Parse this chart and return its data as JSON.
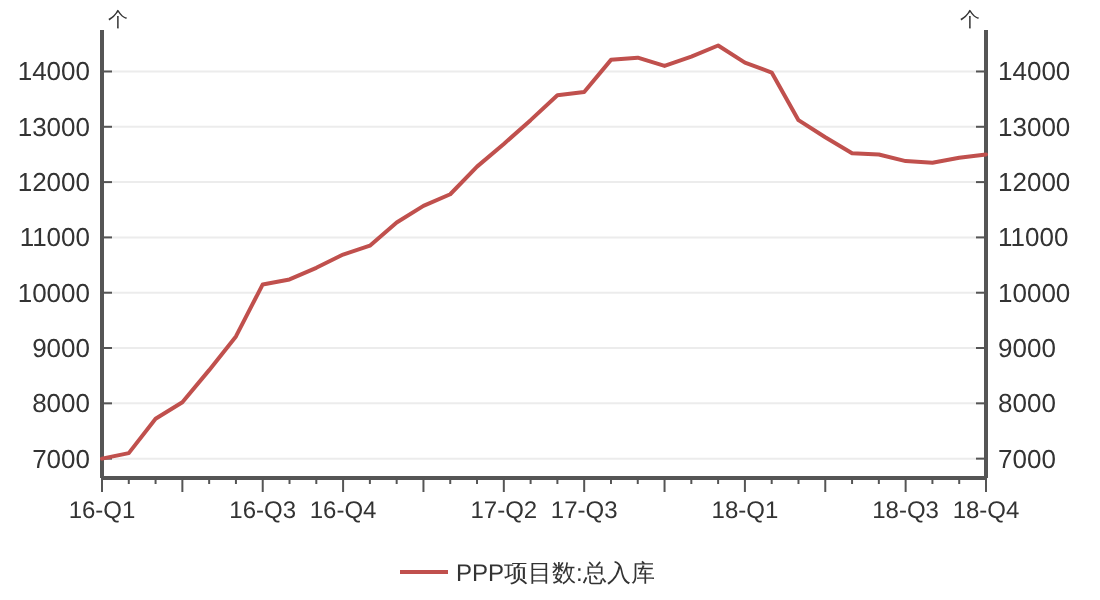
{
  "chart_data": {
    "type": "line",
    "ylabel": "个",
    "y2label": "个",
    "categories": [
      "16-Q1",
      null,
      null,
      null,
      null,
      null,
      "16-Q3",
      null,
      null,
      "16-Q4",
      null,
      null,
      null,
      null,
      null,
      "17-Q2",
      null,
      null,
      "17-Q3",
      null,
      null,
      null,
      null,
      null,
      "18-Q1",
      null,
      null,
      null,
      null,
      null,
      "18-Q3",
      null,
      null,
      "18-Q4"
    ],
    "series": [
      {
        "name": "PPP项目数:总入库",
        "color": "#c0504d",
        "values": [
          7000,
          7100,
          7720,
          8020,
          8600,
          9210,
          10150,
          10240,
          10450,
          10690,
          10850,
          11270,
          11570,
          11780,
          12280,
          12690,
          13120,
          13570,
          13630,
          14210,
          14250,
          14100,
          14270,
          14470,
          14160,
          13980,
          13120,
          12810,
          12520,
          12500,
          12380,
          12350,
          12440,
          12500
        ]
      }
    ],
    "ylim": [
      6650,
      14750
    ],
    "yticks": [
      7000,
      8000,
      9000,
      10000,
      11000,
      12000,
      13000,
      14000
    ],
    "y2lim": [
      6650,
      14750
    ],
    "y2ticks": [
      7000,
      8000,
      9000,
      10000,
      11000,
      12000,
      13000,
      14000
    ],
    "grid": "y",
    "legend": "bottom",
    "marker": "none",
    "line_style": "solid"
  }
}
